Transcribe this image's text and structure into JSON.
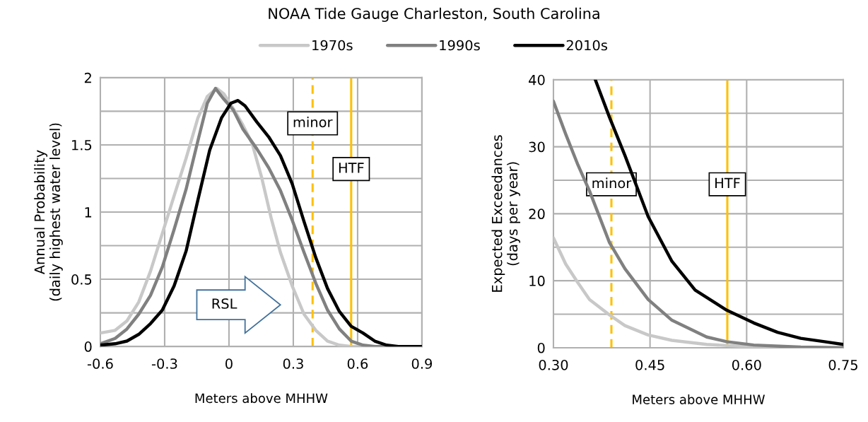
{
  "chart_data": [
    {
      "type": "line",
      "title": "NOAA Tide Gauge Charleston, South Carolina",
      "xlabel": "Meters above MHHW",
      "ylabel": "Annual Probability\n(daily highest water level)",
      "series": [
        {
          "name": "1970s",
          "color": "#c8c8c8",
          "x": [
            -0.6,
            -0.531,
            -0.476,
            -0.421,
            -0.366,
            -0.311,
            -0.256,
            -0.2,
            -0.145,
            -0.101,
            -0.057,
            -0.024,
            0.02,
            0.064,
            0.108,
            0.152,
            0.196,
            0.24,
            0.295,
            0.35,
            0.405,
            0.46,
            0.515,
            0.57,
            0.9
          ],
          "values": [
            0.1,
            0.12,
            0.19,
            0.33,
            0.56,
            0.84,
            1.12,
            1.4,
            1.7,
            1.86,
            1.92,
            1.88,
            1.77,
            1.65,
            1.51,
            1.26,
            0.96,
            0.7,
            0.45,
            0.24,
            0.12,
            0.04,
            0.01,
            0,
            0
          ]
        },
        {
          "name": "1990s",
          "color": "#808080",
          "x": [
            -0.6,
            -0.531,
            -0.476,
            -0.421,
            -0.366,
            -0.311,
            -0.256,
            -0.2,
            -0.145,
            -0.101,
            -0.063,
            -0.024,
            0.02,
            0.064,
            0.13,
            0.185,
            0.24,
            0.295,
            0.35,
            0.405,
            0.46,
            0.515,
            0.57,
            0.625,
            0.68,
            0.9
          ],
          "values": [
            0.02,
            0.06,
            0.13,
            0.24,
            0.38,
            0.59,
            0.87,
            1.17,
            1.53,
            1.81,
            1.92,
            1.84,
            1.76,
            1.62,
            1.47,
            1.33,
            1.16,
            0.94,
            0.7,
            0.47,
            0.27,
            0.13,
            0.04,
            0.01,
            0,
            0
          ]
        },
        {
          "name": "2010s",
          "color": "#000000",
          "x": [
            -0.6,
            -0.531,
            -0.476,
            -0.421,
            -0.366,
            -0.311,
            -0.256,
            -0.2,
            -0.145,
            -0.09,
            -0.035,
            0.009,
            0.042,
            0.075,
            0.13,
            0.185,
            0.24,
            0.295,
            0.35,
            0.405,
            0.46,
            0.515,
            0.57,
            0.625,
            0.68,
            0.735,
            0.79,
            0.9
          ],
          "values": [
            0.01,
            0.02,
            0.04,
            0.09,
            0.17,
            0.27,
            0.45,
            0.71,
            1.09,
            1.46,
            1.7,
            1.81,
            1.83,
            1.79,
            1.67,
            1.56,
            1.42,
            1.21,
            0.93,
            0.66,
            0.43,
            0.26,
            0.15,
            0.1,
            0.04,
            0.01,
            0,
            0
          ]
        }
      ],
      "xlim": [
        -0.6,
        0.9
      ],
      "xticks": [
        -0.6,
        -0.3,
        0,
        0.3,
        0.6,
        0.9
      ],
      "ylim": [
        0,
        2
      ],
      "yticks": [
        0,
        {
          "value": 0.25,
          "label": null
        },
        0.5,
        {
          "value": 0.75,
          "label": null
        },
        1,
        {
          "value": 1.25,
          "label": null
        },
        1.5,
        {
          "value": 1.75,
          "label": null
        },
        2
      ],
      "ref_lines": [
        {
          "axis": "x",
          "value": 0.39,
          "label": "minor",
          "color": "#ffc000",
          "line_style": "dashed"
        },
        {
          "axis": "x",
          "value": 0.57,
          "label": "HTF",
          "color": "#ffc000",
          "line_style": "solid"
        }
      ],
      "annotations": [
        "RSL"
      ],
      "grid": true,
      "legend": "top"
    },
    {
      "type": "line",
      "xlabel": "Meters above MHHW",
      "ylabel": "Expected Exceedances\n(days per year)",
      "series": [
        {
          "color": "#c8c8c8",
          "x": [
            0.3,
            0.319,
            0.338,
            0.356,
            0.387,
            0.411,
            0.447,
            0.484,
            0.538,
            0.593,
            0.648,
            0.75
          ],
          "values": [
            16.4,
            12.5,
            9.7,
            7.2,
            4.9,
            3.3,
            1.9,
            1.1,
            0.5,
            0.2,
            0.1,
            0
          ]
        },
        {
          "color": "#808080",
          "x": [
            0.3,
            0.319,
            0.338,
            0.356,
            0.387,
            0.411,
            0.447,
            0.484,
            0.538,
            0.569,
            0.611,
            0.684,
            0.75
          ],
          "values": [
            36.8,
            31.9,
            27.3,
            23.4,
            15.7,
            11.8,
            7.2,
            4.1,
            1.6,
            0.9,
            0.4,
            0.1,
            0
          ]
        },
        {
          "color": "#000000",
          "x": [
            0.365,
            0.387,
            0.411,
            0.447,
            0.484,
            0.52,
            0.569,
            0.611,
            0.648,
            0.684,
            0.721,
            0.75
          ],
          "values": [
            40,
            34.4,
            28.7,
            19.6,
            12.9,
            8.6,
            5.6,
            3.7,
            2.3,
            1.4,
            0.9,
            0.5
          ]
        }
      ],
      "xlim": [
        0.3,
        0.75
      ],
      "xticks": [
        {
          "value": 0.3,
          "label": "0.30"
        },
        {
          "value": 0.45,
          "label": "0.45"
        },
        {
          "value": 0.6,
          "label": "0.60"
        },
        {
          "value": 0.75,
          "label": "0.75"
        }
      ],
      "ylim": [
        0,
        40
      ],
      "yticks": [
        0,
        {
          "value": 5,
          "label": null
        },
        10,
        {
          "value": 15,
          "label": null
        },
        20,
        {
          "value": 25,
          "label": null
        },
        30,
        {
          "value": 35,
          "label": null
        },
        40
      ],
      "ref_lines": [
        {
          "axis": "x",
          "value": 0.39,
          "label": "minor",
          "color": "#ffc000",
          "line_style": "dashed"
        },
        {
          "axis": "x",
          "value": 0.57,
          "label": "HTF",
          "color": "#ffc000",
          "line_style": "solid"
        }
      ],
      "grid": true
    }
  ]
}
